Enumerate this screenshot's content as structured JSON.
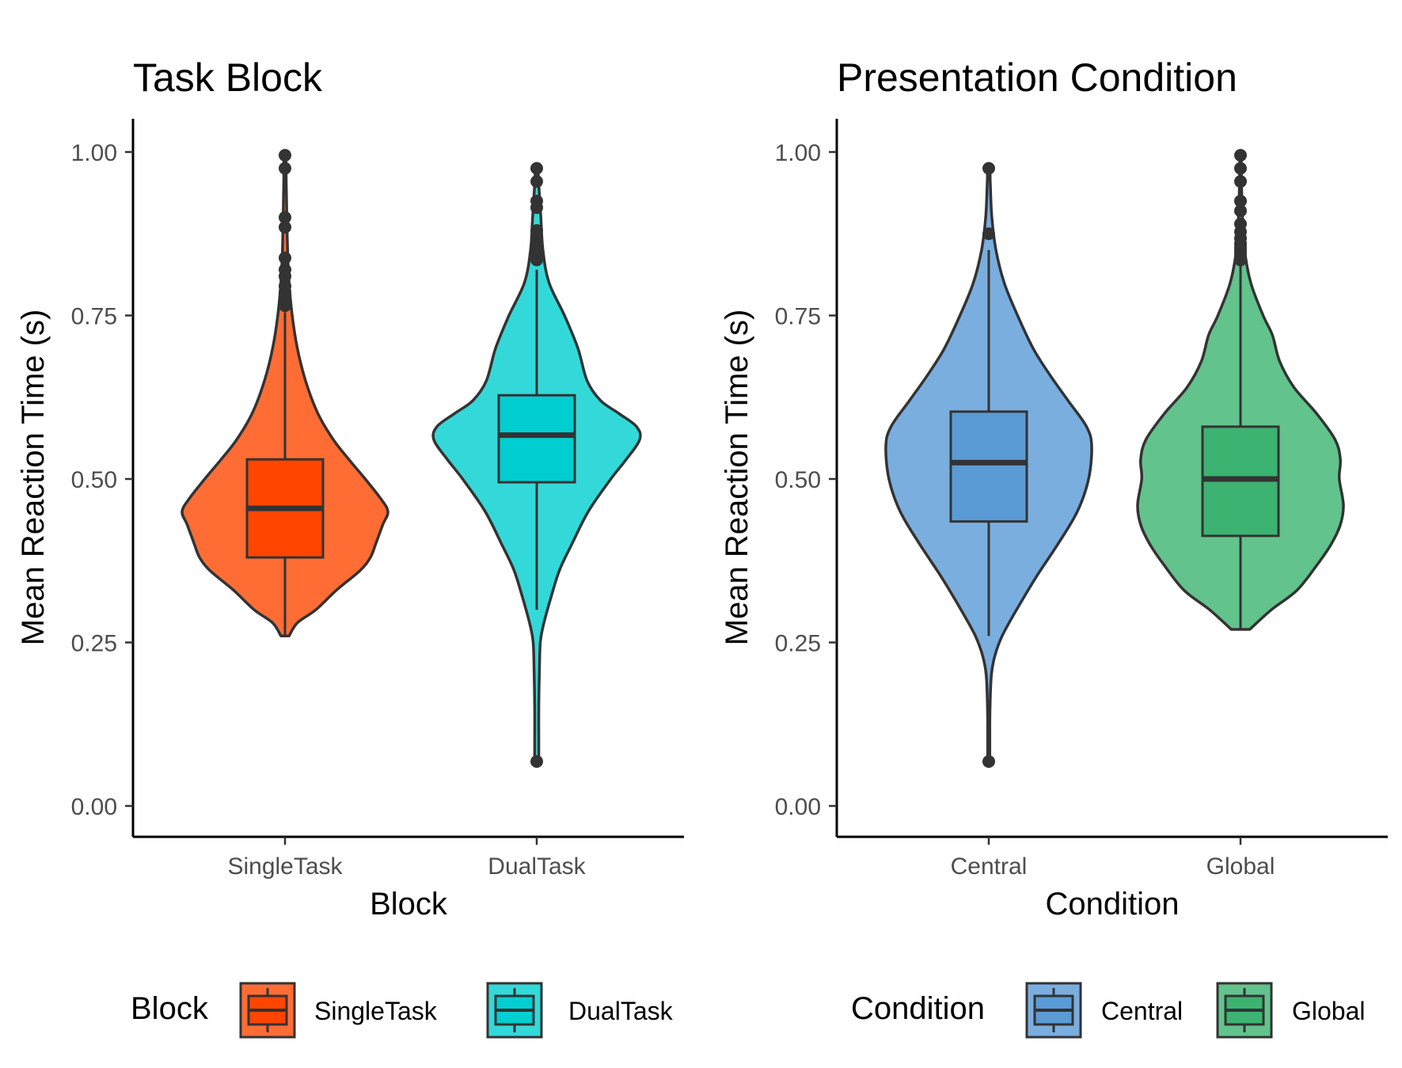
{
  "chart_data": [
    {
      "type": "violin",
      "title": "Task Block",
      "xlabel": "Block",
      "ylabel": "Mean Reaction Time (s)",
      "ylim": [
        -0.05,
        1.05
      ],
      "yticks": [
        "0.00",
        "0.25",
        "0.50",
        "0.75",
        "1.00"
      ],
      "ytick_values": [
        0,
        0.25,
        0.5,
        0.75,
        1.0
      ],
      "legend": {
        "title": "Block",
        "position": "bottom"
      },
      "categories": [
        "SingleTask",
        "DualTask"
      ],
      "series": [
        {
          "name": "SingleTask",
          "violin_color": "#FF6D35",
          "box_color": "#FF4500",
          "box": {
            "q1": 0.38,
            "median": 0.455,
            "q3": 0.53,
            "whisker_low": 0.26,
            "whisker_high": 0.755
          },
          "outliers": [
            0.765,
            0.775,
            0.785,
            0.795,
            0.81,
            0.82,
            0.838,
            0.885,
            0.9,
            0.975,
            0.995
          ],
          "density": [
            [
              0.26,
              0.04
            ],
            [
              0.28,
              0.12
            ],
            [
              0.3,
              0.3
            ],
            [
              0.33,
              0.5
            ],
            [
              0.36,
              0.73
            ],
            [
              0.38,
              0.83
            ],
            [
              0.4,
              0.88
            ],
            [
              0.43,
              0.95
            ],
            [
              0.45,
              1.0
            ],
            [
              0.47,
              0.93
            ],
            [
              0.5,
              0.78
            ],
            [
              0.53,
              0.62
            ],
            [
              0.56,
              0.47
            ],
            [
              0.6,
              0.32
            ],
            [
              0.65,
              0.2
            ],
            [
              0.7,
              0.12
            ],
            [
              0.75,
              0.07
            ],
            [
              0.8,
              0.04
            ],
            [
              0.85,
              0.025
            ],
            [
              0.9,
              0.018
            ],
            [
              0.95,
              0.012
            ],
            [
              0.995,
              0.008
            ]
          ]
        },
        {
          "name": "DualTask",
          "violin_color": "#33D9D9",
          "box_color": "#00CED1",
          "box": {
            "q1": 0.495,
            "median": 0.567,
            "q3": 0.628,
            "whisker_low": 0.3,
            "whisker_high": 0.82
          },
          "outliers": [
            0.068,
            0.835,
            0.84,
            0.845,
            0.85,
            0.855,
            0.86,
            0.865,
            0.872,
            0.88,
            0.915,
            0.925,
            0.955,
            0.975
          ],
          "density": [
            [
              0.068,
              0.02
            ],
            [
              0.1,
              0.02
            ],
            [
              0.15,
              0.02
            ],
            [
              0.2,
              0.025
            ],
            [
              0.25,
              0.035
            ],
            [
              0.28,
              0.07
            ],
            [
              0.32,
              0.14
            ],
            [
              0.36,
              0.22
            ],
            [
              0.4,
              0.34
            ],
            [
              0.45,
              0.5
            ],
            [
              0.5,
              0.72
            ],
            [
              0.53,
              0.87
            ],
            [
              0.56,
              1.0
            ],
            [
              0.58,
              0.97
            ],
            [
              0.6,
              0.8
            ],
            [
              0.62,
              0.62
            ],
            [
              0.65,
              0.49
            ],
            [
              0.7,
              0.4
            ],
            [
              0.75,
              0.27
            ],
            [
              0.8,
              0.12
            ],
            [
              0.85,
              0.06
            ],
            [
              0.9,
              0.04
            ],
            [
              0.95,
              0.02
            ],
            [
              0.975,
              0.01
            ]
          ]
        }
      ]
    },
    {
      "type": "violin",
      "title": "Presentation Condition",
      "xlabel": "Condition",
      "ylabel": "Mean Reaction Time (s)",
      "ylim": [
        -0.05,
        1.05
      ],
      "yticks": [
        "0.00",
        "0.25",
        "0.50",
        "0.75",
        "1.00"
      ],
      "ytick_values": [
        0,
        0.25,
        0.5,
        0.75,
        1.0
      ],
      "legend": {
        "title": "Condition",
        "position": "bottom"
      },
      "categories": [
        "Central",
        "Global"
      ],
      "series": [
        {
          "name": "Central",
          "violin_color": "#7AAEDF",
          "box_color": "#5B9BD5",
          "box": {
            "q1": 0.435,
            "median": 0.525,
            "q3": 0.603,
            "whisker_low": 0.26,
            "whisker_high": 0.85
          },
          "outliers": [
            0.068,
            0.875,
            0.975
          ],
          "density": [
            [
              0.068,
              0.01
            ],
            [
              0.1,
              0.01
            ],
            [
              0.15,
              0.012
            ],
            [
              0.2,
              0.025
            ],
            [
              0.23,
              0.06
            ],
            [
              0.26,
              0.13
            ],
            [
              0.3,
              0.27
            ],
            [
              0.35,
              0.46
            ],
            [
              0.4,
              0.67
            ],
            [
              0.45,
              0.86
            ],
            [
              0.5,
              0.97
            ],
            [
              0.55,
              1.0
            ],
            [
              0.58,
              0.95
            ],
            [
              0.62,
              0.77
            ],
            [
              0.66,
              0.59
            ],
            [
              0.7,
              0.43
            ],
            [
              0.75,
              0.28
            ],
            [
              0.8,
              0.15
            ],
            [
              0.85,
              0.07
            ],
            [
              0.9,
              0.03
            ],
            [
              0.95,
              0.015
            ],
            [
              0.975,
              0.01
            ]
          ]
        },
        {
          "name": "Global",
          "violin_color": "#63C38C",
          "box_color": "#3CB371",
          "box": {
            "q1": 0.413,
            "median": 0.5,
            "q3": 0.58,
            "whisker_low": 0.27,
            "whisker_high": 0.83
          },
          "outliers": [
            0.835,
            0.84,
            0.845,
            0.85,
            0.855,
            0.86,
            0.868,
            0.878,
            0.89,
            0.91,
            0.925,
            0.955,
            0.975,
            0.995
          ],
          "density": [
            [
              0.27,
              0.09
            ],
            [
              0.3,
              0.3
            ],
            [
              0.33,
              0.55
            ],
            [
              0.37,
              0.75
            ],
            [
              0.4,
              0.88
            ],
            [
              0.43,
              0.97
            ],
            [
              0.46,
              1.0
            ],
            [
              0.5,
              0.96
            ],
            [
              0.53,
              0.97
            ],
            [
              0.56,
              0.92
            ],
            [
              0.6,
              0.74
            ],
            [
              0.64,
              0.52
            ],
            [
              0.68,
              0.38
            ],
            [
              0.72,
              0.31
            ],
            [
              0.75,
              0.22
            ],
            [
              0.8,
              0.1
            ],
            [
              0.85,
              0.04
            ],
            [
              0.9,
              0.02
            ],
            [
              0.95,
              0.01
            ],
            [
              0.995,
              0.006
            ]
          ]
        }
      ]
    }
  ]
}
